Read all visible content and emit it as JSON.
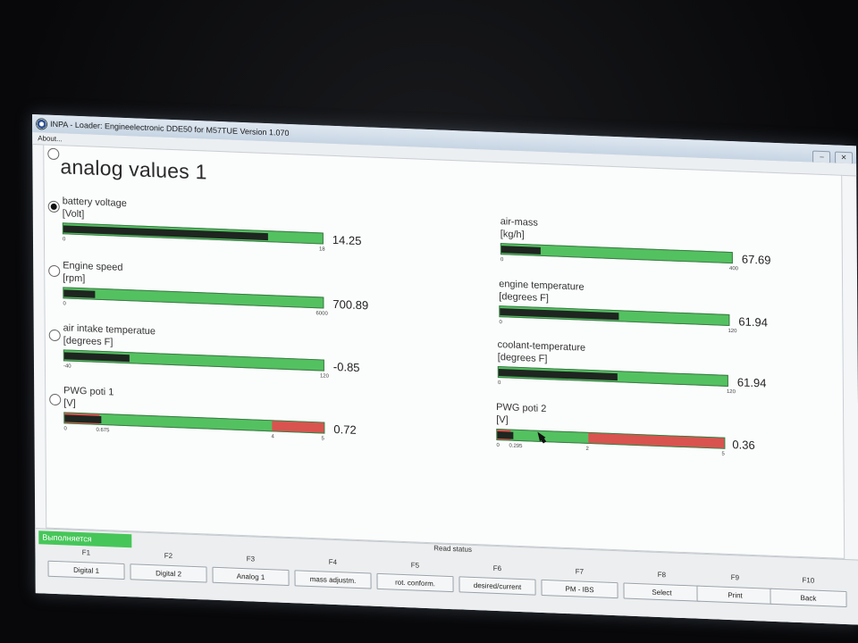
{
  "window": {
    "title": "INPA - Loader:  Engineelectronic DDE50 for M57TUE Version 1.070",
    "menu": [
      "About..."
    ],
    "window_buttons": [
      "minimize-icon",
      "close-icon"
    ]
  },
  "page": {
    "title": "analog values 1"
  },
  "meters_left": [
    {
      "label": "battery voltage",
      "unit": "[Volt]",
      "min": "0",
      "max": "18",
      "value": "14.25",
      "fill": 0.79,
      "ticks": []
    },
    {
      "label": "Engine speed",
      "unit": "[rpm]",
      "min": "0",
      "max": "6000",
      "value": "700.89",
      "fill": 0.12,
      "ticks": []
    },
    {
      "label": "air intake temperatue",
      "unit": "[degrees F]",
      "min": "-40",
      "max": "120",
      "value": "-0.85",
      "fill": 0.25,
      "ticks": []
    },
    {
      "label": "PWG poti 1",
      "unit": "[V]",
      "min": "0",
      "max": "5",
      "value": "0.72",
      "fill": 0.14,
      "ticks": [
        "0.675",
        "4"
      ],
      "green_start": 0.135,
      "red_start": 0.8
    }
  ],
  "meters_right": [
    {
      "label": "air-mass",
      "unit": "[kg/h]",
      "min": "0",
      "max": "400",
      "value": "67.69",
      "fill": 0.17,
      "ticks": []
    },
    {
      "label": "engine temperature",
      "unit": "[degrees F]",
      "min": "0",
      "max": "120",
      "value": "61.94",
      "fill": 0.52,
      "ticks": []
    },
    {
      "label": "coolant-temperature",
      "unit": "[degrees F]",
      "min": "0",
      "max": "120",
      "value": "61.94",
      "fill": 0.52,
      "ticks": []
    },
    {
      "label": "PWG poti 2",
      "unit": "[V]",
      "min": "0",
      "max": "5",
      "value": "0.36",
      "fill": 0.07,
      "ticks": [
        "0.295",
        "2"
      ],
      "green_start": 0.059,
      "red_start": 0.4
    }
  ],
  "status": {
    "running_label": "Выполняется",
    "read_status": "Read status"
  },
  "fkeys": [
    {
      "key": "F1",
      "label": "Digital 1"
    },
    {
      "key": "F2",
      "label": "Digital 2"
    },
    {
      "key": "F3",
      "label": "Analog 1"
    },
    {
      "key": "F4",
      "label": "mass adjustm."
    },
    {
      "key": "F5",
      "label": "rot. conform."
    },
    {
      "key": "F6",
      "label": "desired/current"
    },
    {
      "key": "F7",
      "label": "PM - IBS"
    },
    {
      "key": "F8",
      "label": "Select"
    },
    {
      "key": "F9",
      "label": "Print"
    },
    {
      "key": "F10",
      "label": "Back"
    }
  ],
  "colors": {
    "bar_green": "#54c161",
    "bar_red": "#d9534f",
    "bar_fill": "#1f2520",
    "status_green": "#46c659"
  }
}
